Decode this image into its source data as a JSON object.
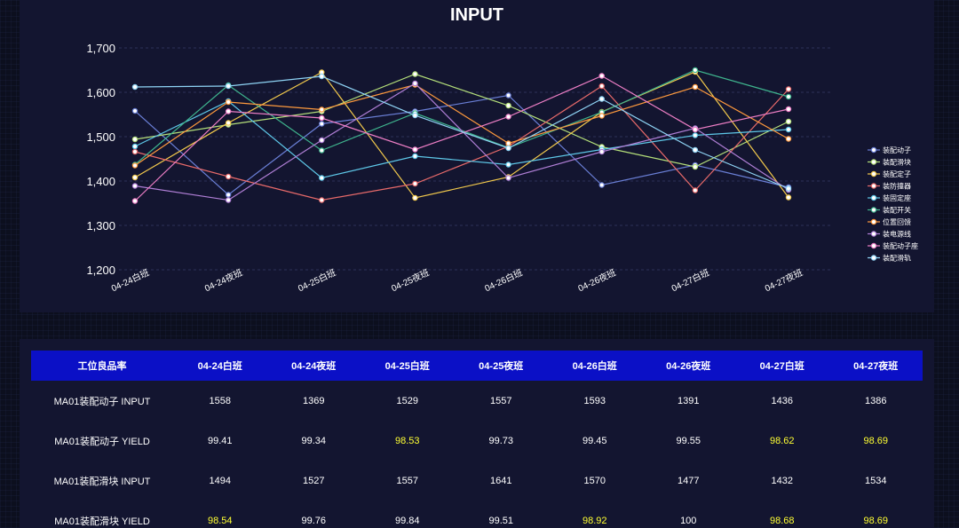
{
  "chart_data": {
    "type": "line",
    "title": "INPUT",
    "categories": [
      "04-24白班",
      "04-24夜班",
      "04-25白班",
      "04-25夜班",
      "04-26白班",
      "04-26夜班",
      "04-27白班",
      "04-27夜班"
    ],
    "ylim": [
      1200,
      1700
    ],
    "yticks": [
      "1,200",
      "1,300",
      "1,400",
      "1,500",
      "1,600",
      "1,700"
    ],
    "ytick_values": [
      1200,
      1300,
      1400,
      1500,
      1600,
      1700
    ],
    "grid": true,
    "legend_position": "right",
    "series": [
      {
        "name": "装配动子",
        "color": "#6a7fd6",
        "values": [
          1558,
          1369,
          1529,
          1557,
          1593,
          1391,
          1436,
          1386
        ]
      },
      {
        "name": "装配滑块",
        "color": "#b5e07a",
        "values": [
          1494,
          1527,
          1557,
          1641,
          1570,
          1477,
          1432,
          1534
        ]
      },
      {
        "name": "装配定子",
        "color": "#f2c94c",
        "values": [
          1408,
          1531,
          1645,
          1362,
          1409,
          1556,
          1646,
          1363
        ]
      },
      {
        "name": "装防撞器",
        "color": "#e86a6a",
        "values": [
          1466,
          1410,
          1357,
          1394,
          1478,
          1614,
          1379,
          1607
        ]
      },
      {
        "name": "装固定座",
        "color": "#5ec8e8",
        "values": [
          1478,
          1580,
          1407,
          1456,
          1437,
          1471,
          1503,
          1516
        ]
      },
      {
        "name": "装配开关",
        "color": "#3fb58e",
        "values": [
          1437,
          1616,
          1469,
          1553,
          1475,
          1555,
          1650,
          1590
        ]
      },
      {
        "name": "位置回馈",
        "color": "#ff9a3d",
        "values": [
          1435,
          1578,
          1561,
          1617,
          1485,
          1547,
          1612,
          1495
        ]
      },
      {
        "name": "装电源线",
        "color": "#b07fd6",
        "values": [
          1389,
          1357,
          1492,
          1620,
          1407,
          1466,
          1519,
          1380
        ]
      },
      {
        "name": "装配动子座",
        "color": "#ee7fc6",
        "values": [
          1355,
          1557,
          1542,
          1471,
          1545,
          1637,
          1516,
          1562
        ]
      },
      {
        "name": "装配滑轨",
        "color": "#8fd4f5",
        "values": [
          1612,
          1614,
          1636,
          1548,
          1474,
          1585,
          1470,
          1383
        ]
      }
    ]
  },
  "table": {
    "headers": [
      "工位良品率",
      "04-24白班",
      "04-24夜班",
      "04-25白班",
      "04-25夜班",
      "04-26白班",
      "04-26夜班",
      "04-27白班",
      "04-27夜班"
    ],
    "rows": [
      {
        "label": "MA01装配动子 INPUT",
        "cells": [
          "1558",
          "1369",
          "1529",
          "1557",
          "1593",
          "1391",
          "1436",
          "1386"
        ],
        "highlight": [
          false,
          false,
          false,
          false,
          false,
          false,
          false,
          false
        ]
      },
      {
        "label": "MA01装配动子 YIELD",
        "cells": [
          "99.41",
          "99.34",
          "98.53",
          "99.73",
          "99.45",
          "99.55",
          "98.62",
          "98.69"
        ],
        "highlight": [
          false,
          false,
          true,
          false,
          false,
          false,
          true,
          true
        ]
      },
      {
        "label": "MA01装配滑块 INPUT",
        "cells": [
          "1494",
          "1527",
          "1557",
          "1641",
          "1570",
          "1477",
          "1432",
          "1534"
        ],
        "highlight": [
          false,
          false,
          false,
          false,
          false,
          false,
          false,
          false
        ]
      },
      {
        "label": "MA01装配滑块 YIELD",
        "cells": [
          "98.54",
          "99.76",
          "99.84",
          "99.51",
          "98.92",
          "100",
          "98.68",
          "98.69"
        ],
        "highlight": [
          true,
          false,
          false,
          false,
          true,
          false,
          true,
          true
        ]
      }
    ]
  }
}
